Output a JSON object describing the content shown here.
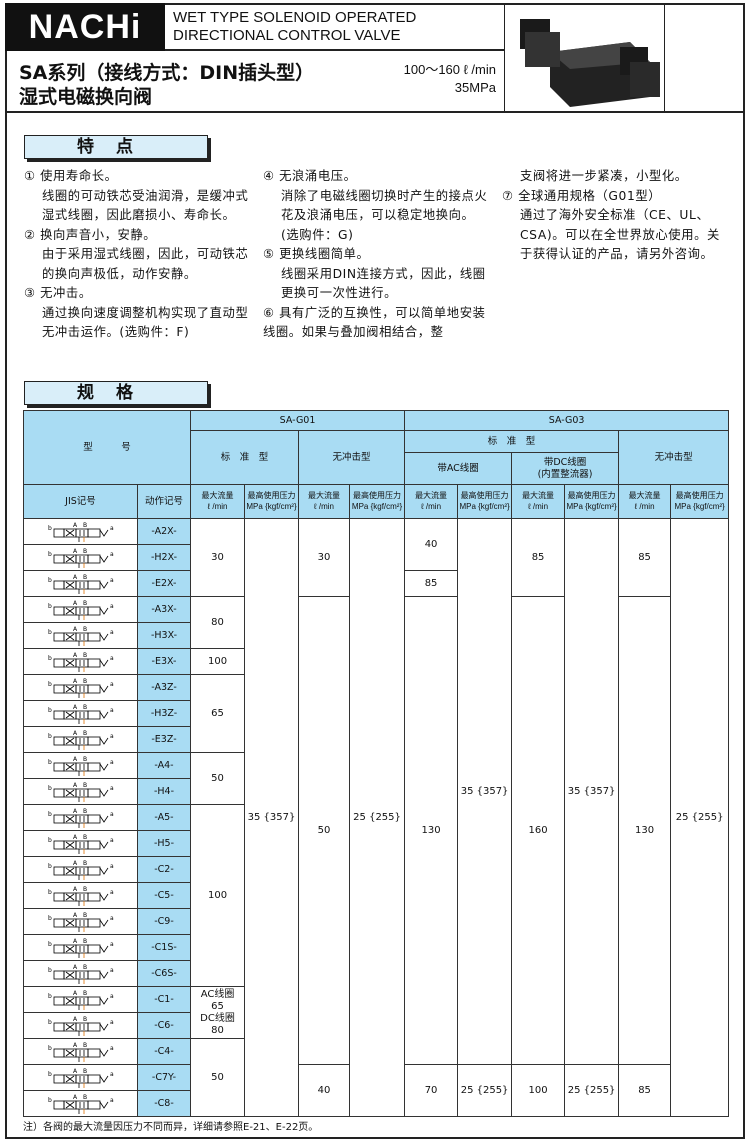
{
  "header": {
    "logo": "NACHi",
    "title_en_1": "WET TYPE SOLENOID OPERATED",
    "title_en_2": "DIRECTIONAL CONTROL VALVE",
    "title_cn_1": "SA系列（接线方式：DIN插头型）",
    "title_cn_2": "湿式电磁换向阀",
    "flow": "100～160 ℓ /min",
    "pressure": "35MPa"
  },
  "features": {
    "title": "特点",
    "items": [
      {
        "head": "① 使用寿命长。",
        "body": "线圈的可动铁芯受油润滑，是缓冲式湿式线圈，因此磨损小、寿命长。"
      },
      {
        "head": "② 换向声音小，安静。",
        "body": "由于采用湿式线圈，因此，可动铁芯的换向声极低，动作安静。"
      },
      {
        "head": "③ 无冲击。",
        "body": "通过换向速度调整机构实现了直动型无冲击运作。(选购件：F)"
      },
      {
        "head": "④ 无浪涌电压。",
        "body": "消除了电磁线圈切换时产生的接点火花及浪涌电压，可以稳定地换向。(选购件：G)"
      },
      {
        "head": "⑤ 更换线圈简单。",
        "body": "线圈采用DIN连接方式，因此，线圈更换可一次性进行。"
      },
      {
        "head": "⑥ 具有广泛的互换性，可以简单地安装线圈。如果与叠加阀相结合，整",
        "body": "支阀将进一步紧凑，小型化。"
      },
      {
        "head": "⑦ 全球通用规格（G01型）",
        "body": "通过了海外安全标准（CE、UL、CSA)。可以在全世界放心使用。关于获得认证的产品，请另外咨询。"
      }
    ]
  },
  "specs": {
    "title": "规格",
    "h_model": "型　　　号",
    "h_g01": "SA-G01",
    "h_g03": "SA-G03",
    "h_std": "标　准　型",
    "h_shockless": "无冲击型",
    "h_ac": "带AC线圈",
    "h_dc": "带DC线圈\n(内置整流器)",
    "h_jis": "JIS记号",
    "h_code": "动作记号",
    "h_flow": "最大流量\nℓ /min",
    "h_press": "最高使用压力\nMPa {kgf/cm²}",
    "codes": [
      "-A2X-",
      "-H2X-",
      "-E2X-",
      "-A3X-",
      "-H3X-",
      "-E3X-",
      "-A3Z-",
      "-H3Z-",
      "-E3Z-",
      "-A4-",
      "-H4-",
      "-A5-",
      "-H5-",
      "-C2-",
      "-C5-",
      "-C9-",
      "-C1S-",
      "-C6S-",
      "-C1-",
      "-C6-",
      "-C4-",
      "-C7Y-",
      "-C8-"
    ],
    "columns": [
      [
        [
          "30",
          3
        ],
        [
          "80",
          2
        ],
        [
          "100",
          1
        ],
        [
          "65",
          3
        ],
        [
          "50",
          2
        ],
        [
          "100",
          7
        ],
        [
          "AC线圈\n65\nDC线圈\n80",
          2
        ],
        [
          "50",
          3
        ]
      ],
      [
        [
          "35 {357}",
          23
        ]
      ],
      [
        [
          "30",
          3
        ],
        [
          "50",
          18
        ],
        [
          "40",
          2
        ]
      ],
      [
        [
          "25 {255}",
          23
        ]
      ],
      [
        [
          "40",
          2
        ],
        [
          "85",
          1
        ],
        [
          "130",
          18
        ],
        [
          "70",
          2
        ]
      ],
      [
        [
          "35 {357}",
          21
        ],
        [
          "25 {255}",
          2
        ]
      ],
      [
        [
          "85",
          3
        ],
        [
          "160",
          18
        ],
        [
          "100",
          2
        ]
      ],
      [
        [
          "35 {357}",
          21
        ],
        [
          "25 {255}",
          2
        ]
      ],
      [
        [
          "85",
          3
        ],
        [
          "130",
          18
        ],
        [
          "85",
          2
        ]
      ],
      [
        [
          "25 {255}",
          23
        ]
      ]
    ],
    "note": "注）各阀的最大流量因压力不同而异，详细请参照E-21、E-22页。"
  },
  "colors": {
    "header_blue": "#a9dcf3",
    "section_blue": "#d9eef9"
  }
}
